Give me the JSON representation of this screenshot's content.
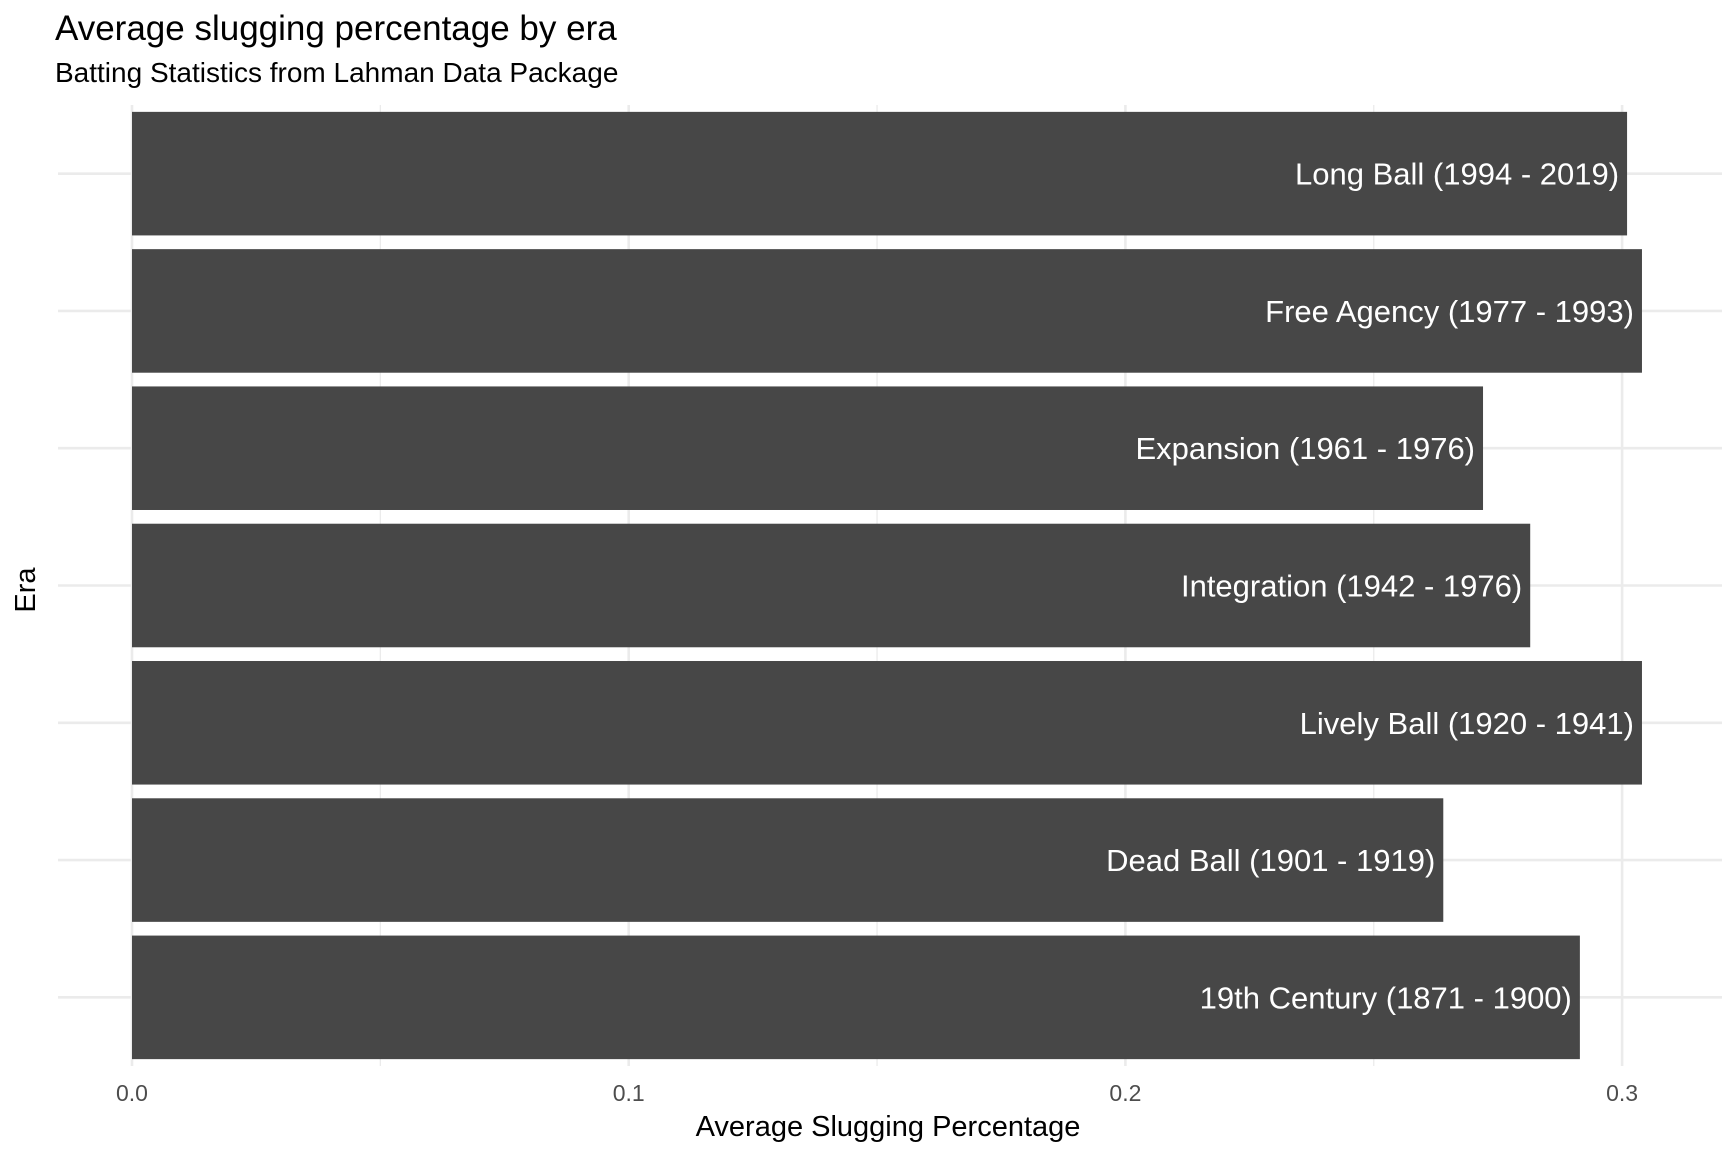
{
  "chart_data": {
    "type": "bar",
    "orientation": "horizontal",
    "title": "Average slugging percentage by era",
    "subtitle": "Batting Statistics from Lahman Data Package",
    "xlabel": "Average Slugging Percentage",
    "ylabel": "Era",
    "categories": [
      "19th Century (1871 - 1900)",
      "Dead Ball (1901 - 1919)",
      "Lively Ball (1920 - 1941)",
      "Integration (1942 - 1976)",
      "Expansion (1961 - 1976)",
      "Free Agency (1977 - 1993)",
      "Long Ball (1994 - 2019)"
    ],
    "values": [
      0.2915,
      0.264,
      0.304,
      0.2815,
      0.272,
      0.304,
      0.301
    ],
    "xlim": [
      0,
      0.31
    ],
    "x_ticks": [
      0.0,
      0.1,
      0.2,
      0.3
    ],
    "x_tick_labels": [
      "0.0",
      "0.1",
      "0.2",
      "0.3"
    ],
    "grid": true,
    "legend": "none",
    "colors": {
      "bar": "#474747",
      "bar_label": "#ffffff",
      "grid": "#ebebeb",
      "tick_label": "#4d4d4d",
      "text": "#000000"
    }
  }
}
